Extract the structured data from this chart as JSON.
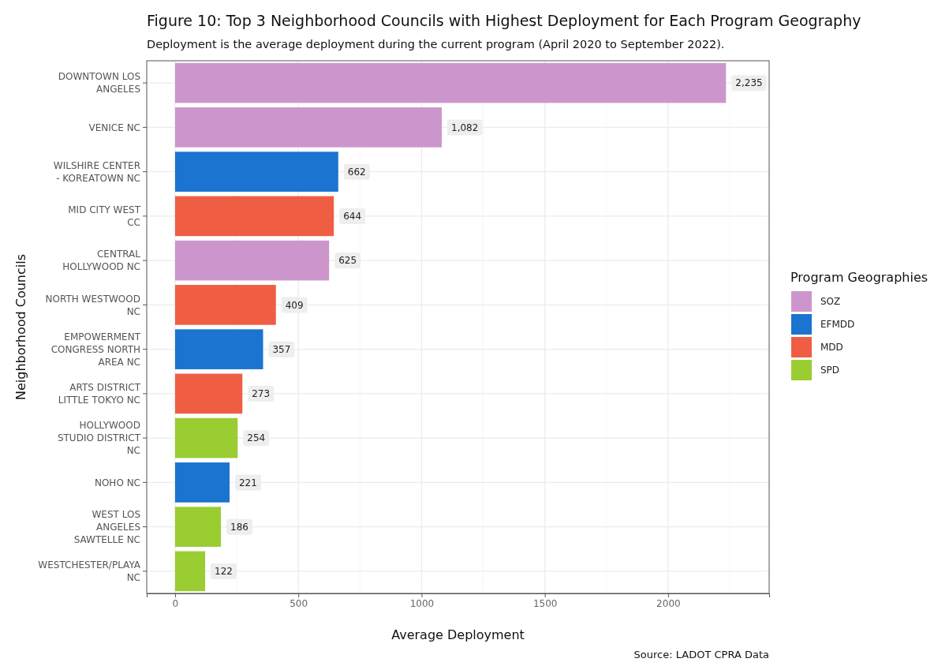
{
  "chart_data": {
    "type": "bar",
    "orientation": "horizontal",
    "title": "Figure 10: Top 3 Neighborhood Councils with Highest Deployment for Each Program Geography",
    "subtitle": "Deployment is the average deployment during the current program (April 2020 to September 2022).",
    "xlabel": "Average Deployment",
    "ylabel": "Neighborhood Councils",
    "legend_title": "Program Geographies",
    "annotations": [
      "Source: LADOT CPRA Data"
    ],
    "categories": [
      "DOWNTOWN LOS ANGELES",
      "VENICE NC",
      "WILSHIRE CENTER - KOREATOWN NC",
      "MID CITY WEST CC",
      "CENTRAL HOLLYWOOD NC",
      "NORTH WESTWOOD NC",
      "EMPOWERMENT CONGRESS NORTH AREA NC",
      "ARTS DISTRICT LITTLE TOKYO NC",
      "HOLLYWOOD STUDIO DISTRICT NC",
      "NOHO NC",
      "WEST LOS ANGELES SAWTELLE NC",
      "WESTCHESTER/PLAYA NC"
    ],
    "series": [
      {
        "name": "SOZ",
        "color": "#cc96cc",
        "values": [
          2235,
          1082,
          null,
          null,
          625,
          null,
          null,
          null,
          null,
          null,
          null,
          null
        ],
        "value_labels": [
          "2,235",
          "1,082",
          null,
          null,
          "625",
          null,
          null,
          null,
          null,
          null,
          null,
          null
        ]
      },
      {
        "name": "EFMDD",
        "color": "#1a74d0",
        "values": [
          null,
          null,
          662,
          null,
          null,
          null,
          357,
          null,
          null,
          221,
          null,
          null
        ],
        "value_labels": [
          null,
          null,
          "662",
          null,
          null,
          null,
          "357",
          null,
          null,
          "221",
          null,
          null
        ]
      },
      {
        "name": "MDD",
        "color": "#ef5e43",
        "values": [
          null,
          null,
          null,
          644,
          null,
          409,
          null,
          273,
          null,
          null,
          null,
          null
        ],
        "value_labels": [
          null,
          null,
          null,
          "644",
          null,
          "409",
          null,
          "273",
          null,
          null,
          null,
          null
        ]
      },
      {
        "name": "SPD",
        "color": "#9acd32",
        "values": [
          null,
          null,
          null,
          null,
          null,
          null,
          null,
          null,
          254,
          null,
          186,
          122
        ],
        "value_labels": [
          null,
          null,
          null,
          null,
          null,
          null,
          null,
          null,
          "254",
          null,
          "186",
          "122"
        ]
      }
    ],
    "xlim": [
      -115,
      2410
    ],
    "xticks": [
      0,
      500,
      1000,
      1500,
      2000
    ],
    "grid": true,
    "legend": "right"
  }
}
